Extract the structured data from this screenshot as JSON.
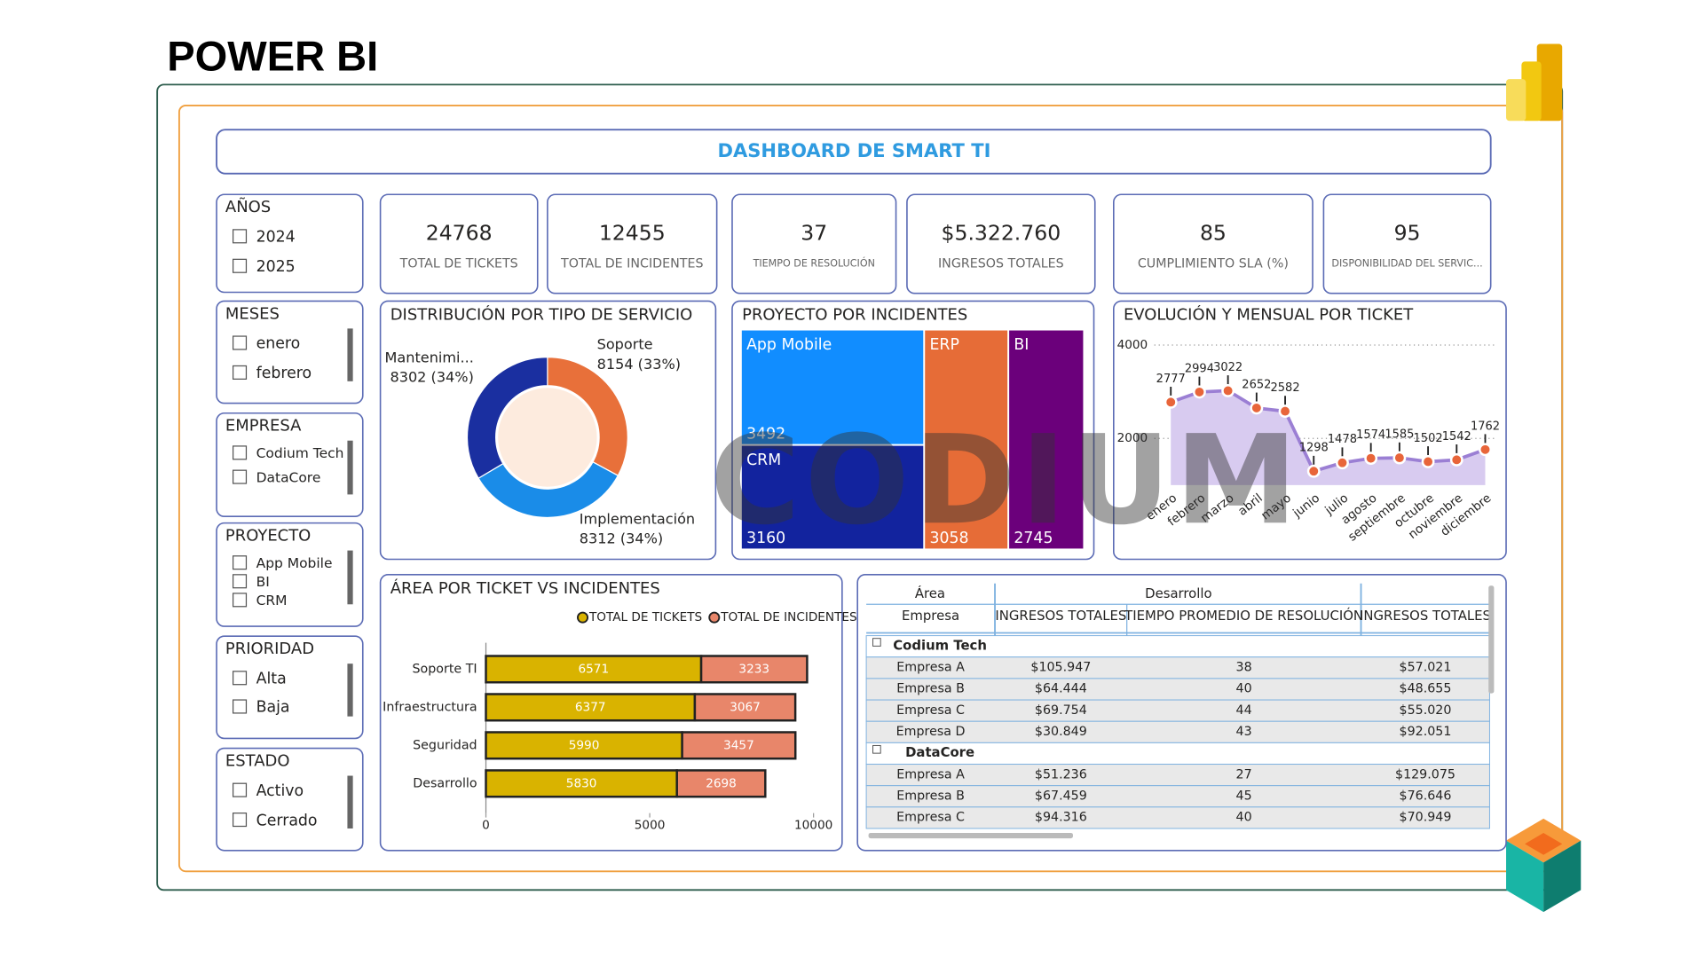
{
  "header": {
    "title": "POWER BI"
  },
  "dashboard": {
    "title": "DASHBOARD DE SMART TI",
    "watermark": "CODIUM"
  },
  "slicers": [
    {
      "title": "AÑOS",
      "items": [
        "2024",
        "2025"
      ]
    },
    {
      "title": "MESES",
      "items": [
        "enero",
        "febrero"
      ]
    },
    {
      "title": "EMPRESA",
      "items": [
        "Codium Tech",
        "DataCore"
      ]
    },
    {
      "title": "PROYECTO",
      "items": [
        "App Mobile",
        "BI",
        "CRM"
      ]
    },
    {
      "title": "PRIORIDAD",
      "items": [
        "Alta",
        "Baja"
      ]
    },
    {
      "title": "ESTADO",
      "items": [
        "Activo",
        "Cerrado"
      ]
    }
  ],
  "kpis": [
    {
      "value": "24768",
      "label": "TOTAL DE TICKETS"
    },
    {
      "value": "12455",
      "label": "TOTAL DE INCIDENTES"
    },
    {
      "value": "37",
      "label": "TIEMPO DE RESOLUCIÓN"
    },
    {
      "value": "$5.322.760",
      "label": "INGRESOS TOTALES"
    },
    {
      "value": "85",
      "label": "CUMPLIMIENTO SLA (%)"
    },
    {
      "value": "95",
      "label": "DISPONIBILIDAD DEL SERVIC..."
    }
  ],
  "chart_data": [
    {
      "type": "pie",
      "title": "DISTRIBUCIÓN POR TIPO DE SERVICIO",
      "donut": true,
      "categories": [
        "Soporte",
        "Implementación",
        "Mantenimi..."
      ],
      "values": [
        8154,
        8312,
        8302
      ],
      "value_labels": [
        "8154 (33%)",
        "8312 (34%)",
        "8302 (34%)"
      ],
      "colors": [
        "#e8703a",
        "#1a8ce8",
        "#1a2fa0"
      ]
    },
    {
      "type": "treemap",
      "title": "PROYECTO POR INCIDENTES",
      "categories": [
        "App Mobile",
        "CRM",
        "ERP",
        "BI"
      ],
      "values": [
        3492,
        3160,
        3058,
        2745
      ],
      "colors": [
        "#118dff",
        "#12239e",
        "#e66c37",
        "#6b007b"
      ]
    },
    {
      "type": "area",
      "title": "EVOLUCIÓN Y MENSUAL POR TICKET",
      "categories": [
        "enero",
        "febrero",
        "marzo",
        "abril",
        "mayo",
        "junio",
        "julio",
        "agosto",
        "septiembre",
        "octubre",
        "noviembre",
        "diciembre"
      ],
      "values": [
        2777,
        2994,
        3022,
        2652,
        2582,
        1298,
        1478,
        1574,
        1585,
        1502,
        1542,
        1762
      ],
      "ylim": [
        1000,
        4000
      ],
      "yticks": [
        2000,
        4000
      ],
      "grid": true,
      "color": "#9b7fd4",
      "fill": "#d8cbf0",
      "marker_color": "#e8653a"
    },
    {
      "type": "bar",
      "orientation": "horizontal",
      "stacked": true,
      "title": "ÁREA POR TICKET VS INCIDENTES",
      "categories": [
        "Soporte TI",
        "Infraestructura",
        "Seguridad",
        "Desarrollo"
      ],
      "series": [
        {
          "name": "TOTAL DE TICKETS",
          "color": "#d9b300",
          "values": [
            6571,
            6377,
            5990,
            5830
          ]
        },
        {
          "name": "TOTAL DE INCIDENTES",
          "color": "#e8866a",
          "values": [
            3233,
            3067,
            3457,
            2698
          ]
        }
      ],
      "xlim": [
        0,
        10000
      ],
      "xticks": [
        0,
        5000,
        10000
      ],
      "legend": "top-right"
    }
  ],
  "table": {
    "header_rows": [
      [
        "Área",
        "Desarrollo"
      ],
      [
        "Empresa",
        "INGRESOS TOTALES",
        "TIEMPO PROMEDIO DE RESOLUCIÓN",
        "INGRESOS TOTALES"
      ]
    ],
    "groups": [
      {
        "name": "Codium Tech",
        "rows": [
          [
            "Empresa A",
            "$105.947",
            "38",
            "$57.021"
          ],
          [
            "Empresa B",
            "$64.444",
            "40",
            "$48.655"
          ],
          [
            "Empresa C",
            "$69.754",
            "44",
            "$55.020"
          ],
          [
            "Empresa D",
            "$30.849",
            "43",
            "$92.051"
          ]
        ]
      },
      {
        "name": "DataCore",
        "rows": [
          [
            "Empresa A",
            "$51.236",
            "27",
            "$129.075"
          ],
          [
            "Empresa B",
            "$67.459",
            "45",
            "$76.646"
          ],
          [
            "Empresa C",
            "$94.316",
            "40",
            "$70.949"
          ]
        ]
      }
    ]
  }
}
